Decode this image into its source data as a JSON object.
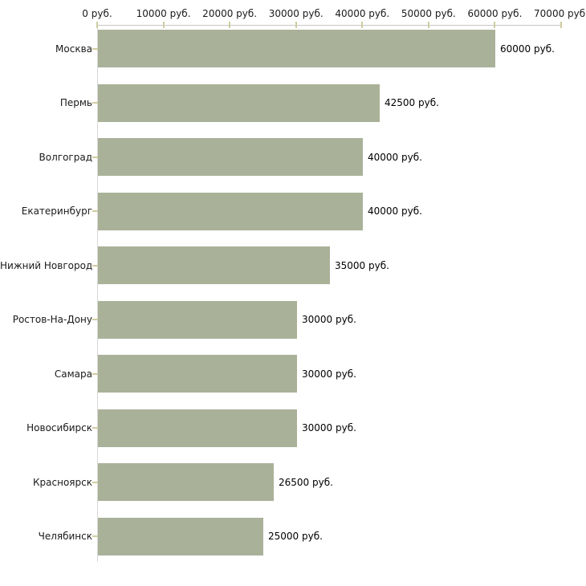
{
  "chart_data": {
    "type": "bar",
    "orientation": "horizontal",
    "unit": "руб.",
    "grid": false,
    "legend": false,
    "categories": [
      "Москва",
      "Пермь",
      "Волгоград",
      "Екатеринбург",
      "Нижний Новгород",
      "Ростов-На-Дону",
      "Самара",
      "Новосибирск",
      "Красноярск",
      "Челябинск"
    ],
    "values": [
      60000,
      42500,
      40000,
      40000,
      35000,
      30000,
      30000,
      30000,
      26500,
      25000
    ],
    "value_labels": [
      "60000 руб.",
      "42500 руб.",
      "40000 руб.",
      "40000 руб.",
      "35000 руб.",
      "30000 руб.",
      "30000 руб.",
      "30000 руб.",
      "26500 руб.",
      "25000 руб."
    ],
    "x_axis": {
      "position": "top",
      "lim": [
        0,
        70000
      ],
      "ticks": [
        0,
        10000,
        20000,
        30000,
        40000,
        50000,
        60000,
        70000
      ],
      "tick_labels": [
        "0 руб.",
        "10000 руб.",
        "20000 руб.",
        "30000 руб.",
        "40000 руб.",
        "50000 руб.",
        "60000 руб.",
        "70000 руб."
      ]
    },
    "colors": {
      "bar": "#aab199",
      "axis_line": "#c6c6c6",
      "tick": "#cfcca0",
      "category_text": "#1a1a1a",
      "value_text": "#000000",
      "background": "#ffffff"
    }
  }
}
